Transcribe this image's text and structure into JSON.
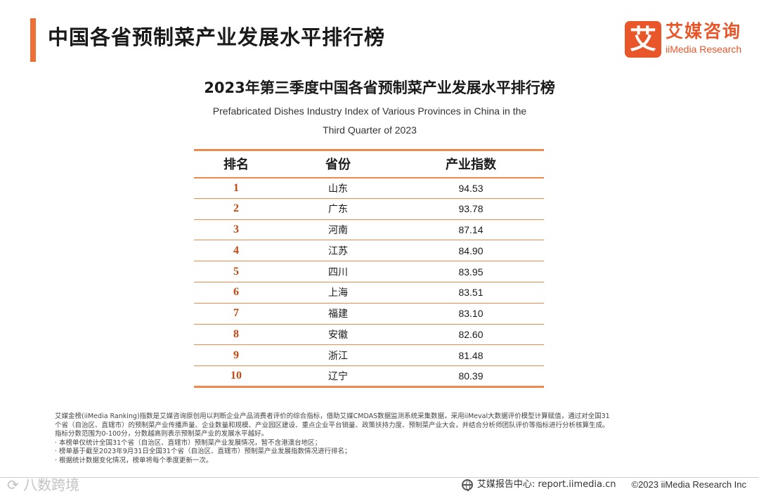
{
  "header": {
    "title": "中国各省预制菜产业发展水平排行榜",
    "accent_color": "#ee6f34"
  },
  "logo": {
    "mark": "艾",
    "name_cn": "艾媒咨询",
    "name_en": "iiMedia Research",
    "color": "#e8562a"
  },
  "table": {
    "title": "2023年第三季度中国各省预制菜产业发展水平排行榜",
    "subtitle_line1": "Prefabricated Dishes Industry Index of Various Provinces in China in the",
    "subtitle_line2": "Third Quarter of 2023",
    "headers": {
      "rank": "排名",
      "province": "省份",
      "index": "产业指数"
    },
    "rows": [
      {
        "rank": "1",
        "province": "山东",
        "index": "94.53"
      },
      {
        "rank": "2",
        "province": "广东",
        "index": "93.78"
      },
      {
        "rank": "3",
        "province": "河南",
        "index": "87.14"
      },
      {
        "rank": "4",
        "province": "江苏",
        "index": "84.90"
      },
      {
        "rank": "5",
        "province": "四川",
        "index": "83.95"
      },
      {
        "rank": "6",
        "province": "上海",
        "index": "83.51"
      },
      {
        "rank": "7",
        "province": "福建",
        "index": "83.10"
      },
      {
        "rank": "8",
        "province": "安徽",
        "index": "82.60"
      },
      {
        "rank": "9",
        "province": "浙江",
        "index": "81.48"
      },
      {
        "rank": "10",
        "province": "辽宁",
        "index": "80.39"
      }
    ]
  },
  "notes": {
    "line1": "艾媒金榜(iiMedia Ranking)指数是艾媒咨询原创用以判断企业产品消费者评价的综合指标，借助艾媒CMDAS数据监测系统采集数据，采用iiMeval大数据评价模型计算赋值，通过对全国31",
    "line2": "个省（自治区、直辖市）的预制菜产业传播声量、企业数量和规模、产业园区建设、重点企业平台销量、政策扶持力度、预制菜产业大会，并结合分析师团队评价等指标进行分析核算生成。",
    "line3": "指标分数范围为0-100分，分数越高则表示预制菜产业的发展水平越好。",
    "line4": "· 本榜单仅统计全国31个省（自治区、直辖市）预制菜产业发展情况，暂不含港澳台地区；",
    "line5": "· 榜单基于截至2023年9月31日全国31个省（自治区、直辖市）预制菜产业发展指数情况进行排名；",
    "line6": "· 根据统计数据变化情况，榜单将每个季度更新一次。"
  },
  "footer": {
    "report_center": "艾媒报告中心: report.iimedia.cn",
    "copyright": "©2023  iiMedia Research  Inc"
  },
  "watermark": {
    "text": "⟳ 八数跨境"
  }
}
